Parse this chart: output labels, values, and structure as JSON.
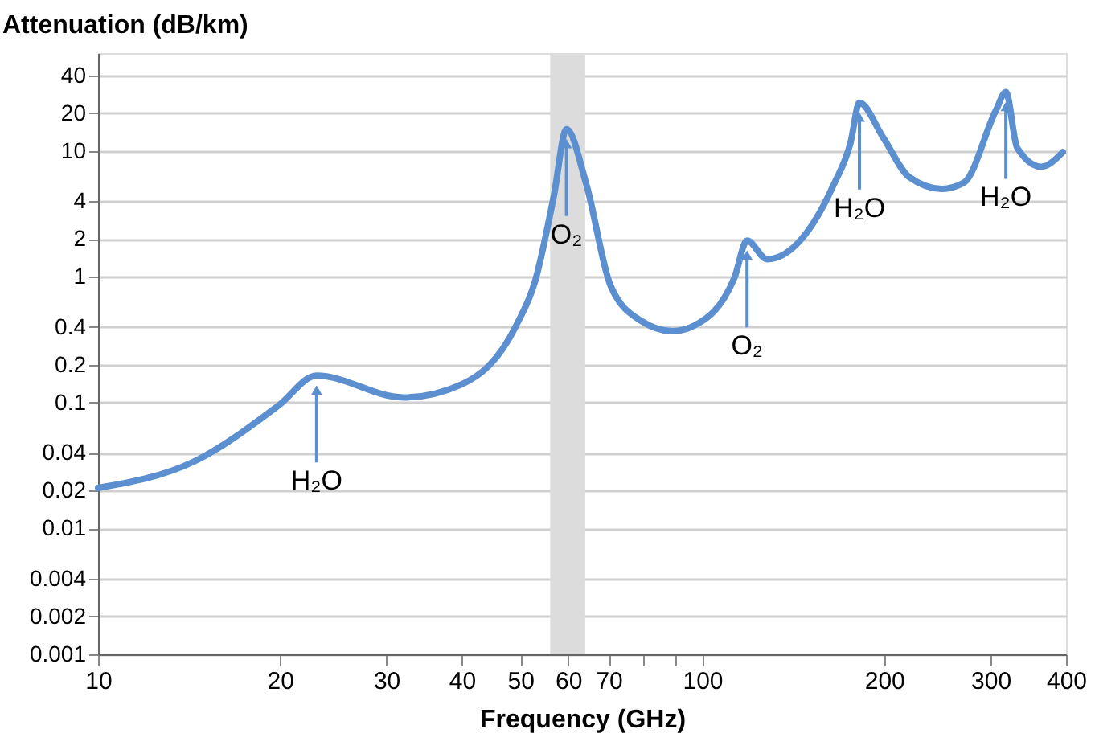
{
  "chart_data": {
    "type": "line",
    "xlabel": "Frequency (GHz)",
    "ylabel": "Attenuation (dB/km)",
    "log": "xy",
    "xlim": [
      10,
      400
    ],
    "ylim": [
      0.001,
      60
    ],
    "xticks": [
      10,
      20,
      30,
      40,
      50,
      60,
      70,
      {
        "value": 80,
        "label": null
      },
      {
        "value": 90,
        "label": null
      },
      100,
      200,
      300,
      400
    ],
    "yticks": [
      0.001,
      0.002,
      0.004,
      0.01,
      0.02,
      0.04,
      0.1,
      0.2,
      0.4,
      1,
      2,
      4,
      10,
      20,
      40
    ],
    "grid": "y",
    "marker": "none",
    "line_style": "solid",
    "bands": [
      {
        "axis": "x",
        "from": 56,
        "to": 64,
        "color": "#dcdcdc"
      }
    ],
    "series": [
      {
        "color": "#5b8fd0",
        "x": [
          10,
          14.4,
          19.9,
          23.0,
          32,
          40,
          49.2,
          52.9,
          56.8,
          59.6,
          64.3,
          70.5,
          79,
          89.3,
          97,
          113,
          118.6,
          128,
          146,
          165,
          176,
          182,
          199,
          220,
          249,
          271,
          306,
          318,
          332,
          364,
          395
        ],
        "values": [
          0.021,
          0.034,
          0.095,
          0.164,
          0.11,
          0.14,
          0.41,
          0.93,
          4.4,
          14.9,
          5.4,
          0.85,
          0.45,
          0.37,
          0.41,
          0.98,
          1.94,
          1.38,
          2.0,
          5.4,
          11.7,
          24.2,
          12.9,
          6.2,
          5.0,
          5.6,
          20.9,
          29.4,
          10.6,
          7.5,
          9.8
        ]
      }
    ],
    "annotations": [
      {
        "text": "H₂O",
        "x": 23.0,
        "y": 0.164
      },
      {
        "text": "O₂",
        "x": 59.6,
        "y": 14.9
      },
      {
        "text": "O₂",
        "x": 118.6,
        "y": 1.94
      },
      {
        "text": "H₂O",
        "x": 182,
        "y": 24.2
      },
      {
        "text": "H₂O",
        "x": 318,
        "y": 29.4
      }
    ]
  }
}
